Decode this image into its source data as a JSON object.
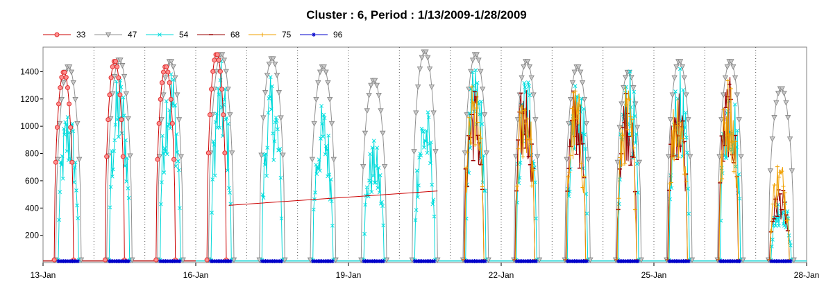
{
  "chart_data": {
    "type": "line",
    "title": "Cluster : 6, Period : 1/13/2009-1/28/2009",
    "xlabel": "",
    "ylabel": "",
    "x_range_days": [
      13,
      28
    ],
    "x_ticks": [
      "13-Jan",
      "16-Jan",
      "19-Jan",
      "22-Jan",
      "25-Jan",
      "28-Jan"
    ],
    "x_tick_days": [
      13,
      16,
      19,
      22,
      25,
      28
    ],
    "ylim": [
      0,
      1580
    ],
    "y_ticks": [
      200,
      400,
      600,
      800,
      1000,
      1200,
      1400
    ],
    "grid": "vertical dotted (daily)",
    "legend_position": "top-left",
    "series": [
      {
        "name": "33",
        "color": "#e03030",
        "marker": "circle",
        "line": "#cc0000",
        "days": [
          13,
          14,
          15,
          16
        ]
      },
      {
        "name": "47",
        "color": "#a0a0a0",
        "marker": "triangle-down",
        "line": "#909090",
        "days": [
          13,
          14,
          15,
          16,
          17,
          18,
          19,
          20,
          21,
          22,
          23,
          24,
          25,
          26,
          27
        ]
      },
      {
        "name": "54",
        "color": "#00e0e0",
        "marker": "x",
        "line": "#00d8d8",
        "days": [
          13,
          14,
          15,
          16,
          17,
          18,
          19,
          20,
          21,
          22,
          23,
          24,
          25,
          26,
          27
        ]
      },
      {
        "name": "68",
        "color": "#990000",
        "marker": "dash",
        "line": "#990000",
        "days": [
          21,
          22,
          23,
          24,
          25,
          26,
          27
        ]
      },
      {
        "name": "75",
        "color": "#f0a000",
        "marker": "plus",
        "line": "#f0a000",
        "days": [
          21,
          22,
          23,
          24,
          25,
          26,
          27
        ]
      },
      {
        "name": "96",
        "color": "#0000cc",
        "marker": "star",
        "line": "#0000cc",
        "days": []
      }
    ],
    "daily_peaks": {
      "33": [
        1400,
        1480,
        1440,
        1530
      ],
      "47": [
        1440,
        1490,
        1480,
        1530,
        1500,
        1440,
        1340,
        1550,
        1530,
        1480,
        1440,
        1400,
        1480,
        1480,
        1280
      ],
      "54": [
        1180,
        1420,
        1520,
        1480,
        1380,
        1180,
        900,
        1200,
        1480,
        1450,
        1460,
        1520,
        1430,
        1420,
        500
      ],
      "68": [
        1330,
        1380,
        1340,
        1340,
        1350,
        1380,
        580
      ],
      "75": [
        1350,
        1380,
        1330,
        1330,
        1380,
        1390,
        780
      ]
    },
    "connector_33": {
      "from_day": 16.65,
      "from_value": 420,
      "to_day": 20.75,
      "to_value": 525
    }
  }
}
